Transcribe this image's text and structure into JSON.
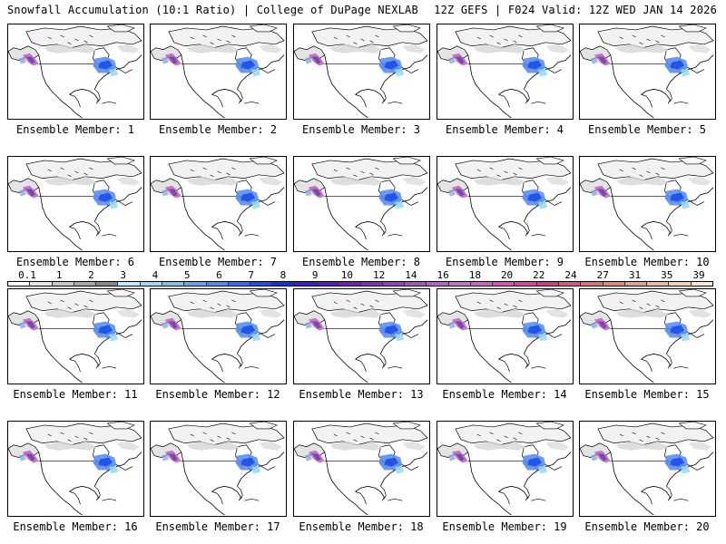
{
  "header": {
    "left": "Snowfall Accumulation (10:1 Ratio) | College of DuPage NEXLAB",
    "right": "12Z GEFS | F024 Valid: 12Z WED JAN 14 2026"
  },
  "members": [
    {
      "label": "Ensemble Member: 1"
    },
    {
      "label": "Ensemble Member: 2"
    },
    {
      "label": "Ensemble Member: 3"
    },
    {
      "label": "Ensemble Member: 4"
    },
    {
      "label": "Ensemble Member: 5"
    },
    {
      "label": "Ensemble Member: 6"
    },
    {
      "label": "Ensemble Member: 7"
    },
    {
      "label": "Ensemble Member: 8"
    },
    {
      "label": "Ensemble Member: 9"
    },
    {
      "label": "Ensemble Member: 10"
    },
    {
      "label": "Ensemble Member: 11"
    },
    {
      "label": "Ensemble Member: 12"
    },
    {
      "label": "Ensemble Member: 13"
    },
    {
      "label": "Ensemble Member: 14"
    },
    {
      "label": "Ensemble Member: 15"
    },
    {
      "label": "Ensemble Member: 16"
    },
    {
      "label": "Ensemble Member: 17"
    },
    {
      "label": "Ensemble Member: 18"
    },
    {
      "label": "Ensemble Member: 19"
    },
    {
      "label": "Ensemble Member: 20"
    }
  ],
  "colorbar": {
    "labels": [
      "0.1",
      "1",
      "2",
      "3",
      "4",
      "5",
      "6",
      "7",
      "8",
      "9",
      "10",
      "12",
      "14",
      "16",
      "18",
      "20",
      "22",
      "24",
      "27",
      "31",
      "35",
      "39"
    ],
    "colors": [
      "#ffffff",
      "#e6e6e6",
      "#c8c8c8",
      "#a8a8a8",
      "#8a8a8a",
      "#b8f0ff",
      "#96dcf5",
      "#74c4f0",
      "#5aa8ee",
      "#4a8ff0",
      "#2f6ef2",
      "#1c4fe6",
      "#0e32d8",
      "#3a1fd0",
      "#5a18c0",
      "#7020b0",
      "#8030b0",
      "#9440b8",
      "#a852c0",
      "#b860c8",
      "#c870d0",
      "#d060c8",
      "#d850b8",
      "#d844a0",
      "#cc3c88",
      "#d05a80",
      "#d8707a",
      "#e08878",
      "#e8a08a",
      "#f0b8a0",
      "#f6d0b8",
      "#fbe6d4"
    ]
  }
}
